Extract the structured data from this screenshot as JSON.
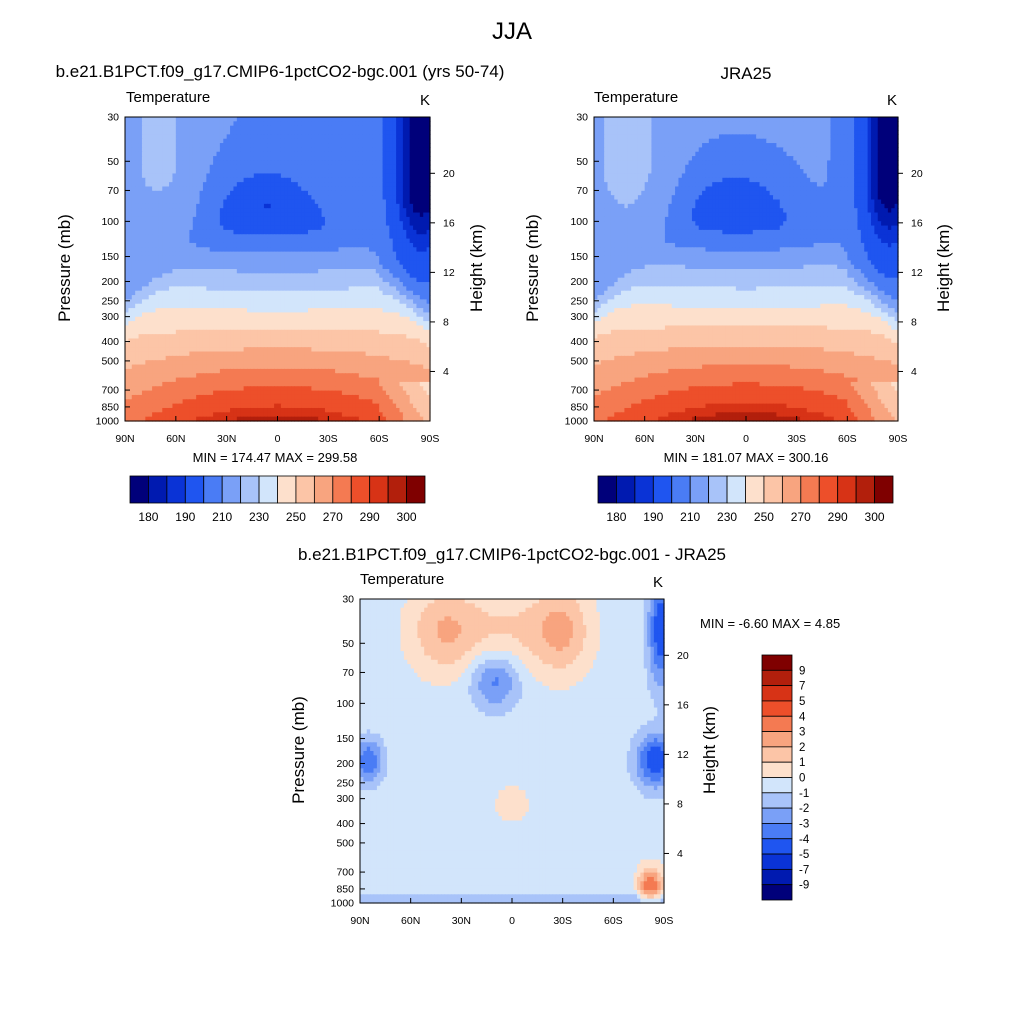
{
  "figure": {
    "title": "JJA"
  },
  "colors": {
    "abs_fill": [
      "#00007a",
      "#001ab0",
      "#0a33d6",
      "#1f55f0",
      "#4a7cf5",
      "#7aa0f7",
      "#a8c3f9",
      "#d2e5fb",
      "#fde0cc",
      "#fcc5a7",
      "#f8a47f",
      "#f47a52",
      "#ed4f2a",
      "#d73316",
      "#b21f0c",
      "#7f0000"
    ],
    "diff_fill": [
      "#00007a",
      "#001ab0",
      "#0a33d6",
      "#1f55f0",
      "#4a7cf5",
      "#7aa0f7",
      "#a8c3f9",
      "#d2e5fb",
      "#fde0cc",
      "#fcc5a7",
      "#f8a47f",
      "#f47a52",
      "#ed4f2a",
      "#d73316",
      "#b21f0c",
      "#7f0000"
    ]
  },
  "chart_data": [
    {
      "type": "heatmap",
      "title": "b.e21.B1PCT.f09_g17.CMIP6-1pctCO2-bgc.001 (yrs 50-74)",
      "left_string": "Temperature",
      "right_string": "K",
      "ylabel": "Pressure (mb)",
      "ylabel_right": "Height (km)",
      "x_ticks": [
        "90N",
        "60N",
        "30N",
        "0",
        "30S",
        "60S",
        "90S"
      ],
      "y_ticks": [
        "30",
        "50",
        "70",
        "100",
        "150",
        "200",
        "250",
        "300",
        "400",
        "500",
        "700",
        "850",
        "1000"
      ],
      "y2_ticks": [
        "20",
        "16",
        "12",
        "8",
        "4"
      ],
      "min_max": "MIN = 174.47  MAX = 299.58",
      "min": 174.47,
      "max": 299.58,
      "levels": [
        180,
        185,
        190,
        200,
        210,
        220,
        230,
        240,
        250,
        260,
        270,
        280,
        290,
        295,
        300
      ],
      "colorbar_labels": [
        "180",
        "190",
        "210",
        "230",
        "250",
        "270",
        "290",
        "300"
      ]
    },
    {
      "type": "heatmap",
      "title": "JRA25",
      "left_string": "Temperature",
      "right_string": "K",
      "ylabel": "Pressure (mb)",
      "ylabel_right": "Height (km)",
      "x_ticks": [
        "90N",
        "60N",
        "30N",
        "0",
        "30S",
        "60S",
        "90S"
      ],
      "y_ticks": [
        "30",
        "50",
        "70",
        "100",
        "150",
        "200",
        "250",
        "300",
        "400",
        "500",
        "700",
        "850",
        "1000"
      ],
      "y2_ticks": [
        "20",
        "16",
        "12",
        "8",
        "4"
      ],
      "min_max": "MIN = 181.07  MAX = 300.16",
      "min": 181.07,
      "max": 300.16,
      "levels": [
        180,
        185,
        190,
        200,
        210,
        220,
        230,
        240,
        250,
        260,
        270,
        280,
        290,
        295,
        300
      ],
      "colorbar_labels": [
        "180",
        "190",
        "210",
        "230",
        "250",
        "270",
        "290",
        "300"
      ]
    },
    {
      "type": "heatmap",
      "title": "b.e21.B1PCT.f09_g17.CMIP6-1pctCO2-bgc.001 - JRA25",
      "left_string": "Temperature",
      "right_string": "K",
      "ylabel": "Pressure (mb)",
      "ylabel_right": "Height (km)",
      "x_ticks": [
        "90N",
        "60N",
        "30N",
        "0",
        "30S",
        "60S",
        "90S"
      ],
      "y_ticks": [
        "30",
        "50",
        "70",
        "100",
        "150",
        "200",
        "250",
        "300",
        "400",
        "500",
        "700",
        "850",
        "1000"
      ],
      "y2_ticks": [
        "20",
        "16",
        "12",
        "8",
        "4"
      ],
      "min_max": "MIN =  -6.60  MAX =   4.85",
      "min": -6.6,
      "max": 4.85,
      "colorbar_labels": [
        "9",
        "7",
        "5",
        "4",
        "3",
        "2",
        "1",
        "0",
        "-1",
        "-2",
        "-3",
        "-4",
        "-5",
        "-7",
        "-9"
      ]
    }
  ]
}
